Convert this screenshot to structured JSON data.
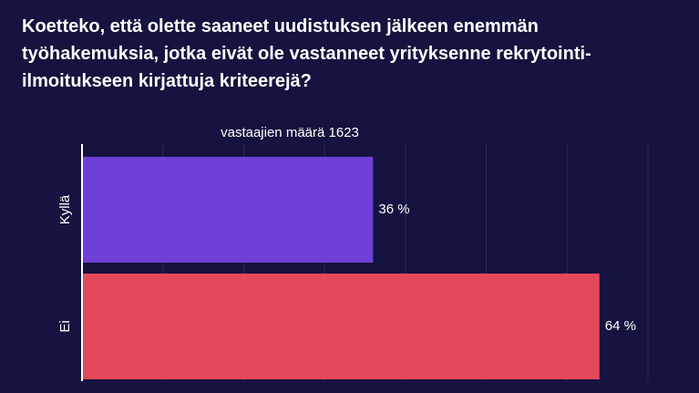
{
  "chart_data": {
    "type": "hbar",
    "title": "Koetteko, että olette saaneet uudistuksen jälkeen enemmän työhakemuksia, jotka eivät ole vastanneet yrityksenne rekrytointi-ilmoitukseen kirjattuja kriteerejä?",
    "subtitle": "vastaajien määrä 1623",
    "categories": [
      "Kyllä",
      "Ei"
    ],
    "values": [
      36,
      64
    ],
    "value_labels": [
      "36 %",
      "64 %"
    ],
    "colors": [
      "#6e40d8",
      "#e4485b"
    ],
    "xlim": [
      0,
      70
    ],
    "xticks": [
      0,
      10,
      20,
      30,
      40,
      50,
      60,
      70
    ],
    "grid": true
  }
}
